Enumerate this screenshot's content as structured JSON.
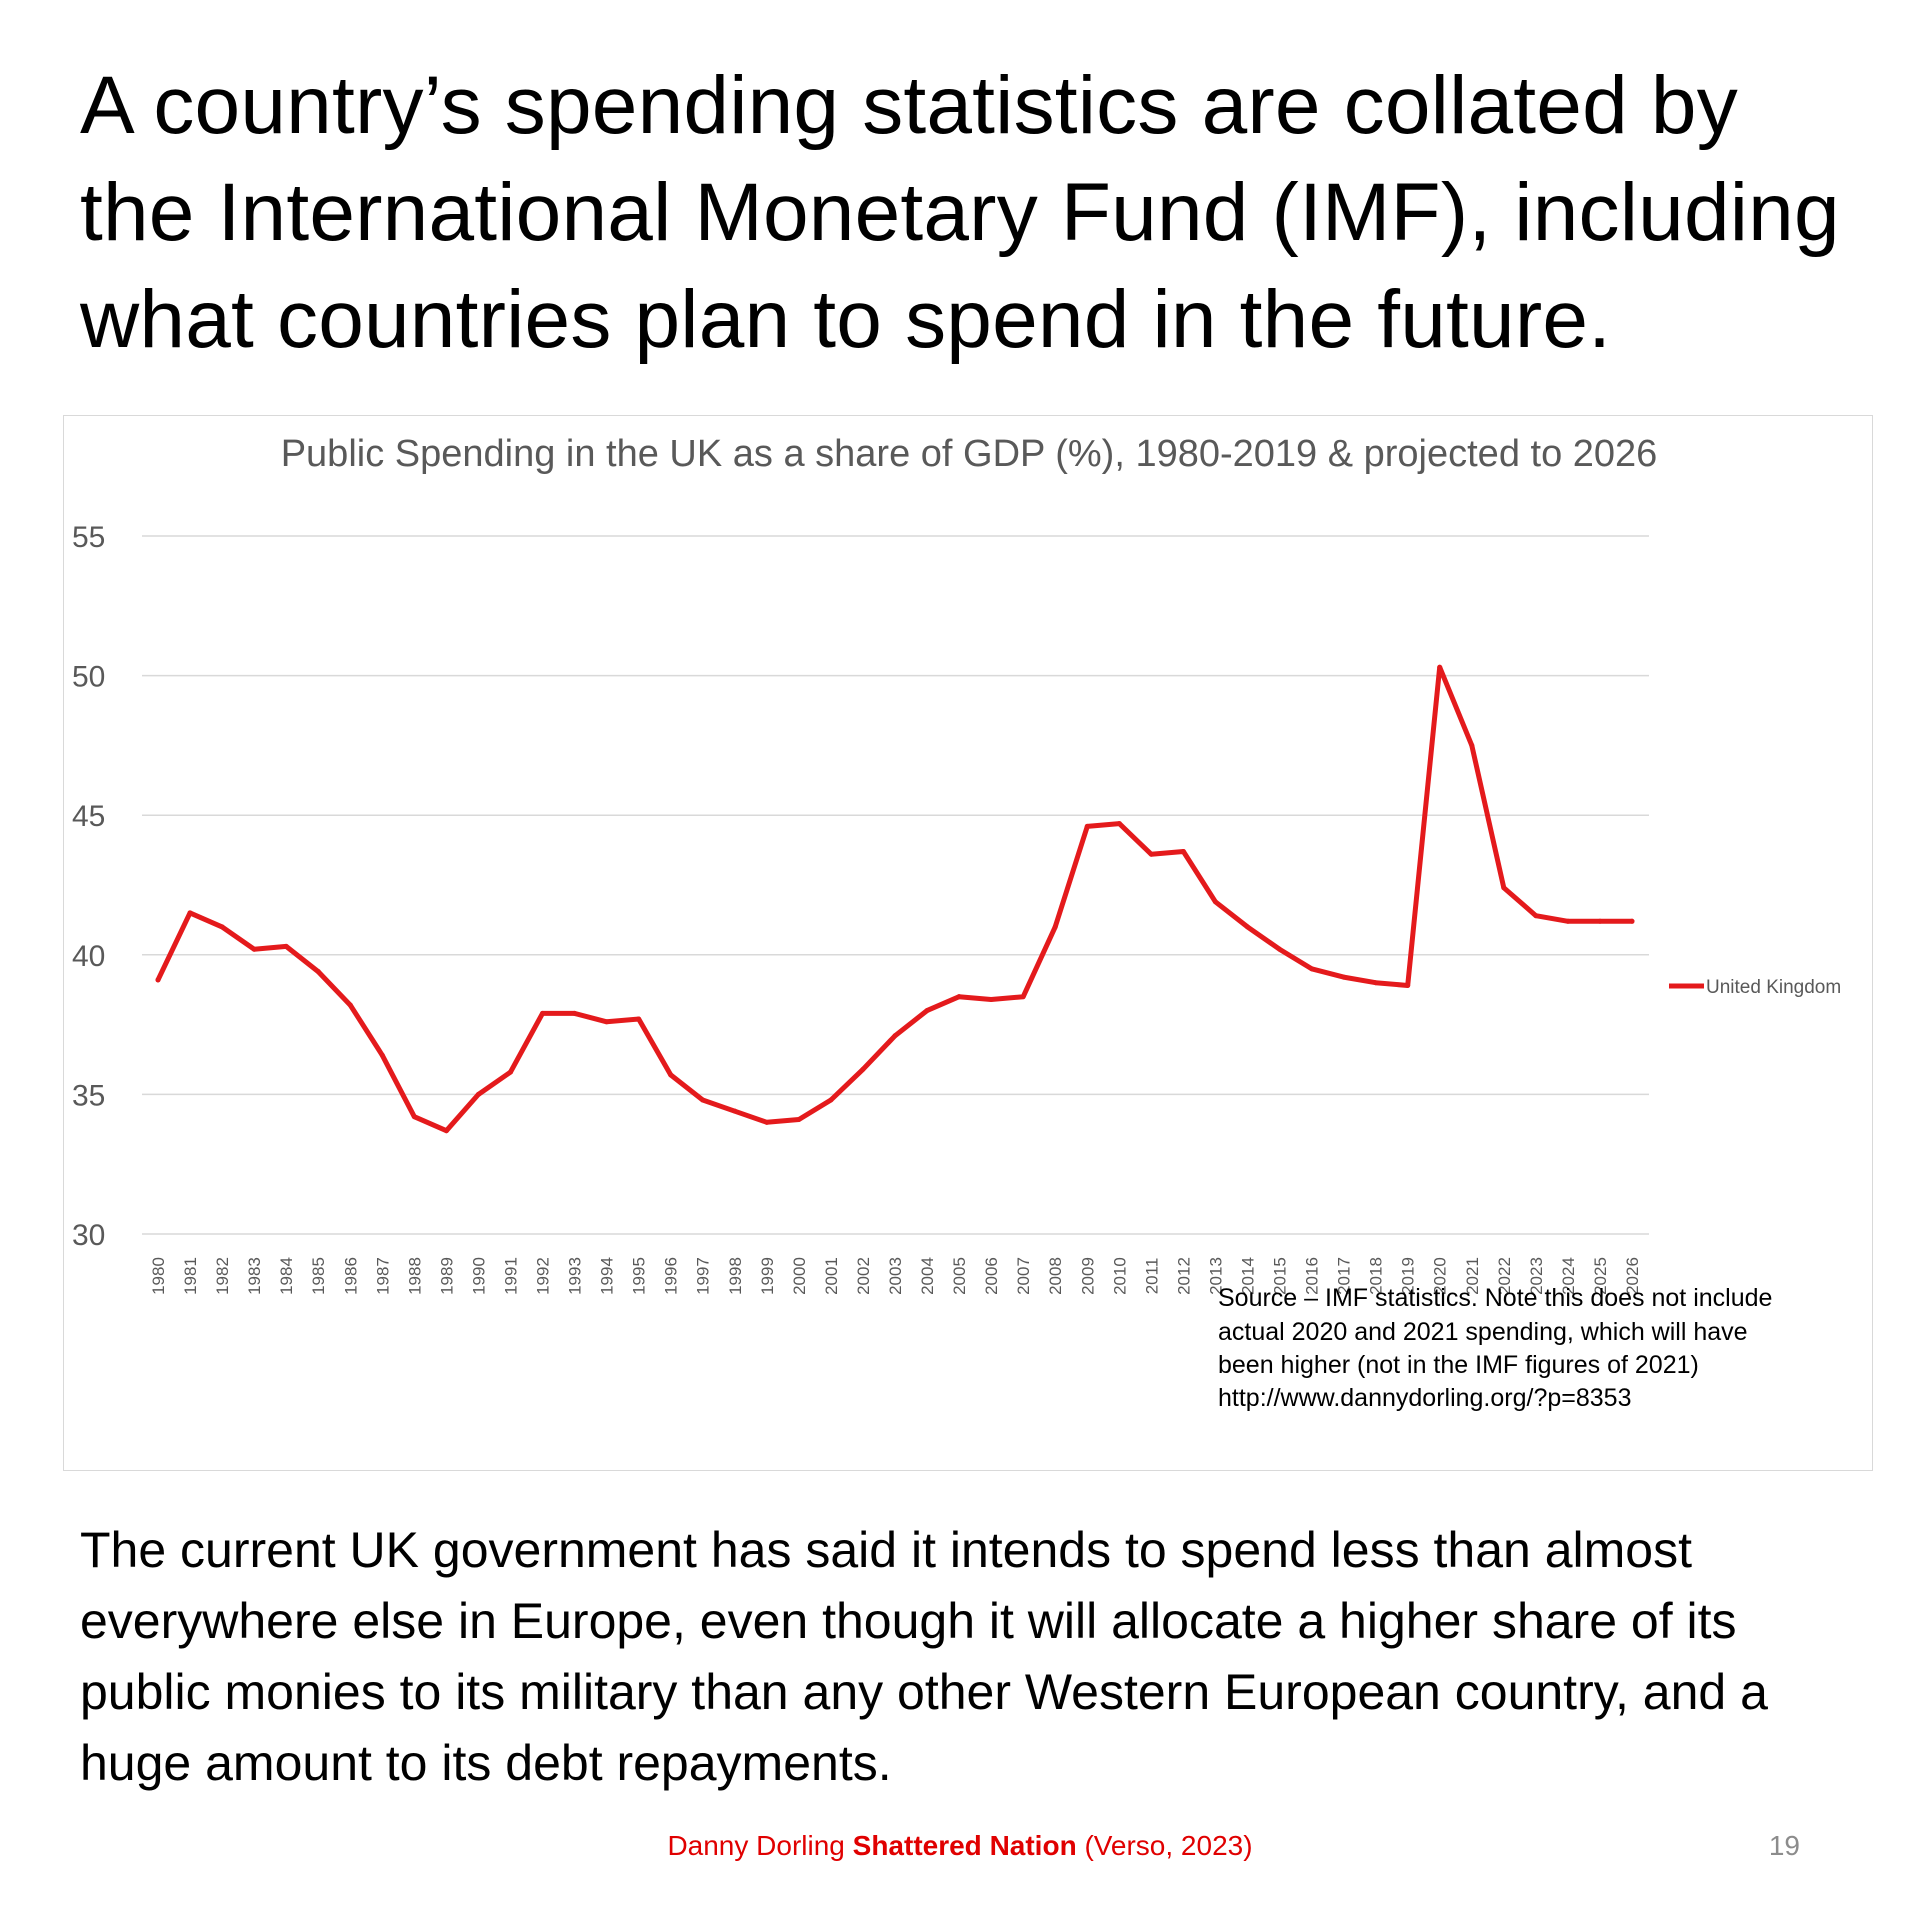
{
  "slide": {
    "headline": "A country’s spending statistics are collated by the International Monetary Fund (IMF), including what countries plan to spend in the future.",
    "body": "The current UK government has said it intends to spend less than almost everywhere else in Europe, even though it will allocate a higher share of its public monies to its military than any other Western European country, and a huge amount to its debt repayments.",
    "footer": {
      "author": "Danny Dorling",
      "book": "Shattered Nation",
      "publisher": "(Verso, 2023)"
    },
    "page_number": "19"
  },
  "chart_data": {
    "type": "line",
    "title": "Public Spending in the UK as a share of GDP (%), 1980-2019 & projected to 2026",
    "xlabel": "",
    "ylabel": "",
    "ylim": [
      30,
      55
    ],
    "yticks": [
      30,
      35,
      40,
      45,
      50,
      55
    ],
    "grid": true,
    "legend_position": "right",
    "categories": [
      "1980",
      "1981",
      "1982",
      "1983",
      "1984",
      "1985",
      "1986",
      "1987",
      "1988",
      "1989",
      "1990",
      "1991",
      "1992",
      "1993",
      "1994",
      "1995",
      "1996",
      "1997",
      "1998",
      "1999",
      "2000",
      "2001",
      "2002",
      "2003",
      "2004",
      "2005",
      "2006",
      "2007",
      "2008",
      "2009",
      "2010",
      "2011",
      "2012",
      "2013",
      "2014",
      "2015",
      "2016",
      "2017",
      "2018",
      "2019",
      "2020",
      "2021",
      "2022",
      "2023",
      "2024",
      "2025",
      "2026"
    ],
    "series": [
      {
        "name": "United Kingdom",
        "color": "#e41a1c",
        "values": [
          39.1,
          41.5,
          41.0,
          40.2,
          40.3,
          39.4,
          38.2,
          36.4,
          34.2,
          33.7,
          35.0,
          35.8,
          37.9,
          37.9,
          37.6,
          37.7,
          35.7,
          34.8,
          34.4,
          34.0,
          34.1,
          34.8,
          35.9,
          37.1,
          38.0,
          38.5,
          38.4,
          38.5,
          41.0,
          44.6,
          44.7,
          43.6,
          43.7,
          41.9,
          41.0,
          40.2,
          39.5,
          39.2,
          39.0,
          38.9,
          50.3,
          47.5,
          42.4,
          41.4,
          41.2,
          41.2,
          41.2
        ]
      }
    ],
    "annotation": [
      "Source – IMF statistics. Note this does not include",
      "actual 2020 and 2021 spending, which will have",
      "been higher (not in the IMF figures of 2021)",
      "http://www.dannydorling.org/?p=8353"
    ]
  }
}
